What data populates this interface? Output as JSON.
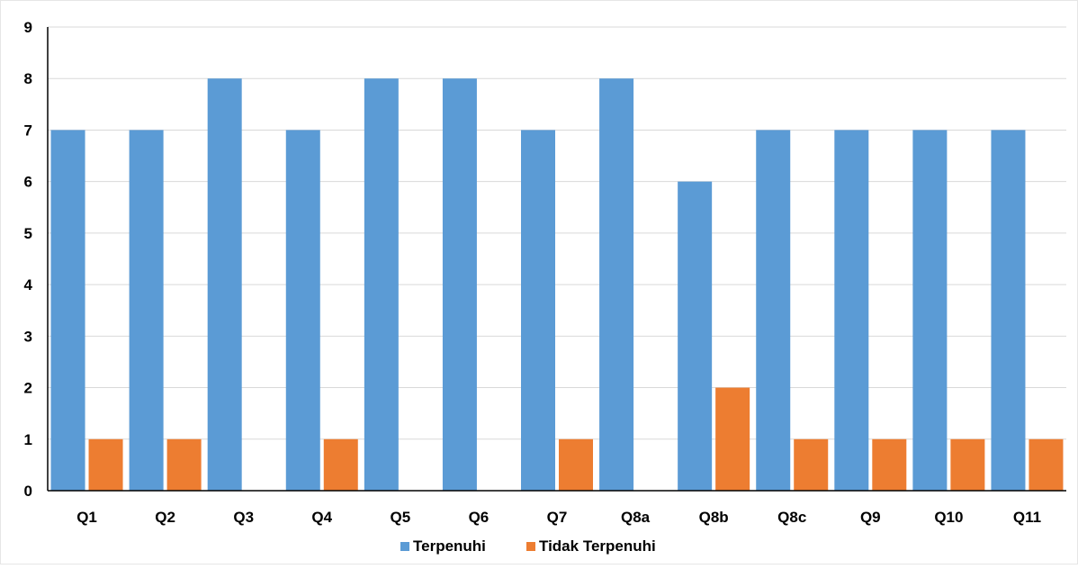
{
  "chart_data": {
    "type": "bar",
    "categories": [
      "Q1",
      "Q2",
      "Q3",
      "Q4",
      "Q5",
      "Q6",
      "Q7",
      "Q8a",
      "Q8b",
      "Q8c",
      "Q9",
      "Q10",
      "Q11"
    ],
    "series": [
      {
        "name": "Terpenuhi",
        "color": "#5B9BD5",
        "values": [
          7,
          7,
          8,
          7,
          8,
          8,
          7,
          8,
          6,
          7,
          7,
          7,
          7
        ]
      },
      {
        "name": "Tidak Terpenuhi",
        "color": "#ED7D31",
        "values": [
          1,
          1,
          0,
          1,
          0,
          0,
          1,
          0,
          2,
          1,
          1,
          1,
          1
        ]
      }
    ],
    "ylim": [
      0,
      9
    ],
    "y_ticks": [
      "0",
      "1",
      "2",
      "3",
      "4",
      "5",
      "6",
      "7",
      "8",
      "9"
    ],
    "grid": true,
    "legend_position": "bottom"
  }
}
